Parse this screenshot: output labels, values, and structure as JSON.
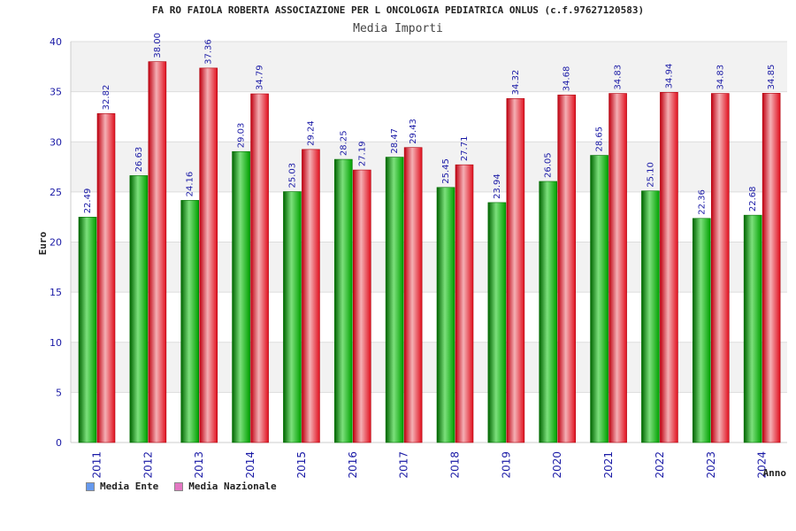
{
  "chart_data": {
    "type": "bar",
    "title": "FA RO FAIOLA ROBERTA ASSOCIAZIONE PER L ONCOLOGIA PEDIATRICA ONLUS (c.f.97627120583)",
    "subtitle": "Media Importi",
    "xlabel": "Anno",
    "ylabel": "Euro",
    "ylim": [
      0,
      40
    ],
    "yticks": [
      0,
      5,
      10,
      15,
      20,
      25,
      30,
      35,
      40
    ],
    "categories": [
      "2011",
      "2012",
      "2013",
      "2014",
      "2015",
      "2016",
      "2017",
      "2018",
      "2019",
      "2020",
      "2021",
      "2022",
      "2023",
      "2024"
    ],
    "series": [
      {
        "name": "Media Ente",
        "color": "#00b400",
        "legend_color": "#6699ee",
        "values": [
          22.49,
          26.63,
          24.16,
          29.03,
          25.03,
          28.25,
          28.47,
          25.45,
          23.94,
          26.05,
          28.65,
          25.1,
          22.36,
          22.68
        ],
        "labels": [
          "22.49",
          "26.63",
          "24.16",
          "29.03",
          "25.03",
          "28.25",
          "28.47",
          "25.45",
          "23.94",
          "26.05",
          "28.65",
          "25.10",
          "22.36",
          "22.68"
        ]
      },
      {
        "name": "Media Nazionale",
        "color": "#e8101e",
        "legend_color": "#e377c2",
        "values": [
          32.82,
          38.0,
          37.36,
          34.79,
          29.24,
          27.19,
          29.43,
          27.71,
          34.32,
          34.68,
          34.83,
          34.94,
          34.83,
          34.85
        ],
        "labels": [
          "32.82",
          "38.00",
          "37.36",
          "34.79",
          "29.24",
          "27.19",
          "29.43",
          "27.71",
          "34.32",
          "34.68",
          "34.83",
          "34.94",
          "34.83",
          "34.85"
        ]
      }
    ],
    "grid": true,
    "legend_position": "bottom-left"
  }
}
